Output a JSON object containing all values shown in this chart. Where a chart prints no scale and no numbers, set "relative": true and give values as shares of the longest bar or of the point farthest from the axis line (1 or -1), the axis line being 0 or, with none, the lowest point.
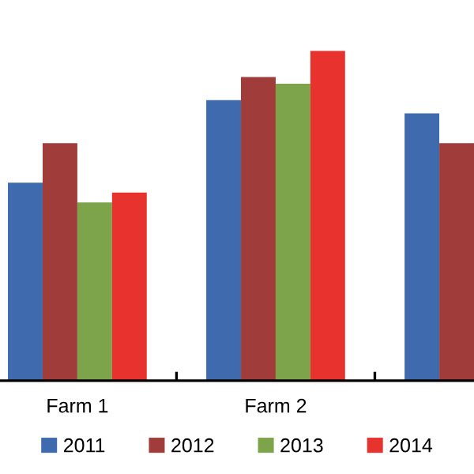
{
  "chart_data": {
    "type": "bar",
    "relative": true,
    "categories": [
      "Farm 1",
      "Farm 2",
      null
    ],
    "series": [
      {
        "name": "2011",
        "color": "#3f6aad",
        "values": [
          0.6,
          0.85,
          0.81
        ]
      },
      {
        "name": "2012",
        "color": "#a03c3a",
        "values": [
          0.72,
          0.92,
          0.72
        ]
      },
      {
        "name": "2013",
        "color": "#7da44a",
        "values": [
          0.54,
          0.9,
          null
        ]
      },
      {
        "name": "2014",
        "color": "#e8322e",
        "values": [
          0.57,
          1,
          null
        ]
      }
    ],
    "legend": "bottom",
    "grid": false
  }
}
